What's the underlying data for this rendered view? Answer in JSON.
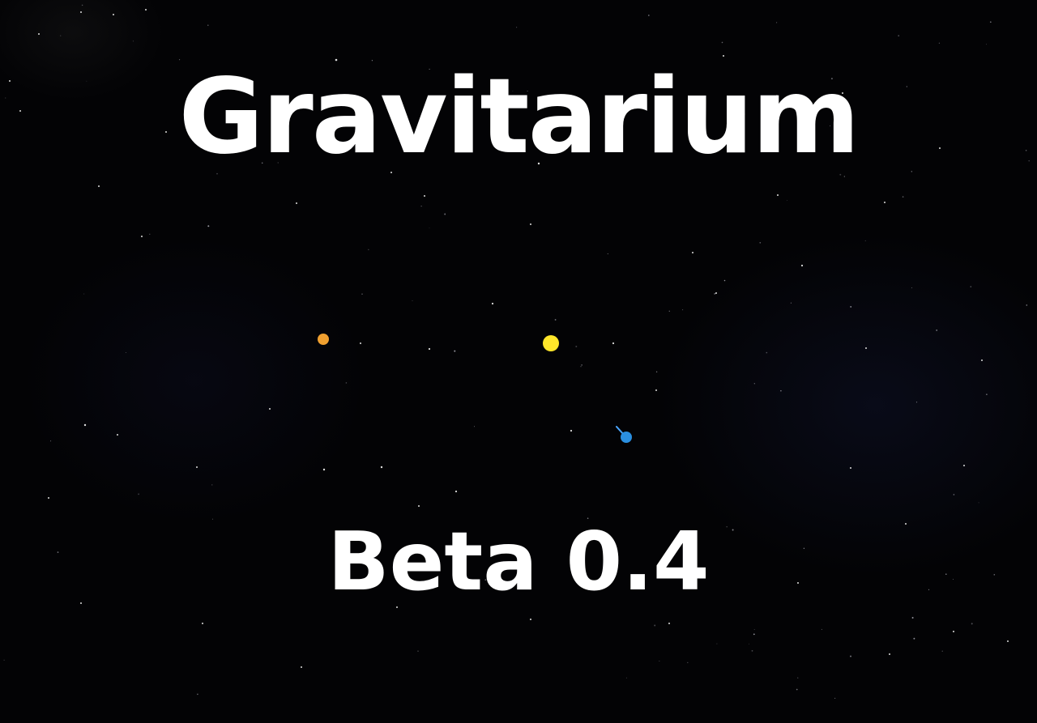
{
  "title_screen": {
    "game_title": "Gravitarium",
    "version_label": "Beta 0.4"
  },
  "bodies": [
    {
      "name": "planet-orange",
      "color": "#f0a030"
    },
    {
      "name": "star-yellow",
      "color": "#ffe62a"
    },
    {
      "name": "planet-blue",
      "color": "#2a8fe0"
    }
  ],
  "colors": {
    "background": "#030305",
    "text": "#ffffff",
    "trail": "#4aa6ff"
  }
}
